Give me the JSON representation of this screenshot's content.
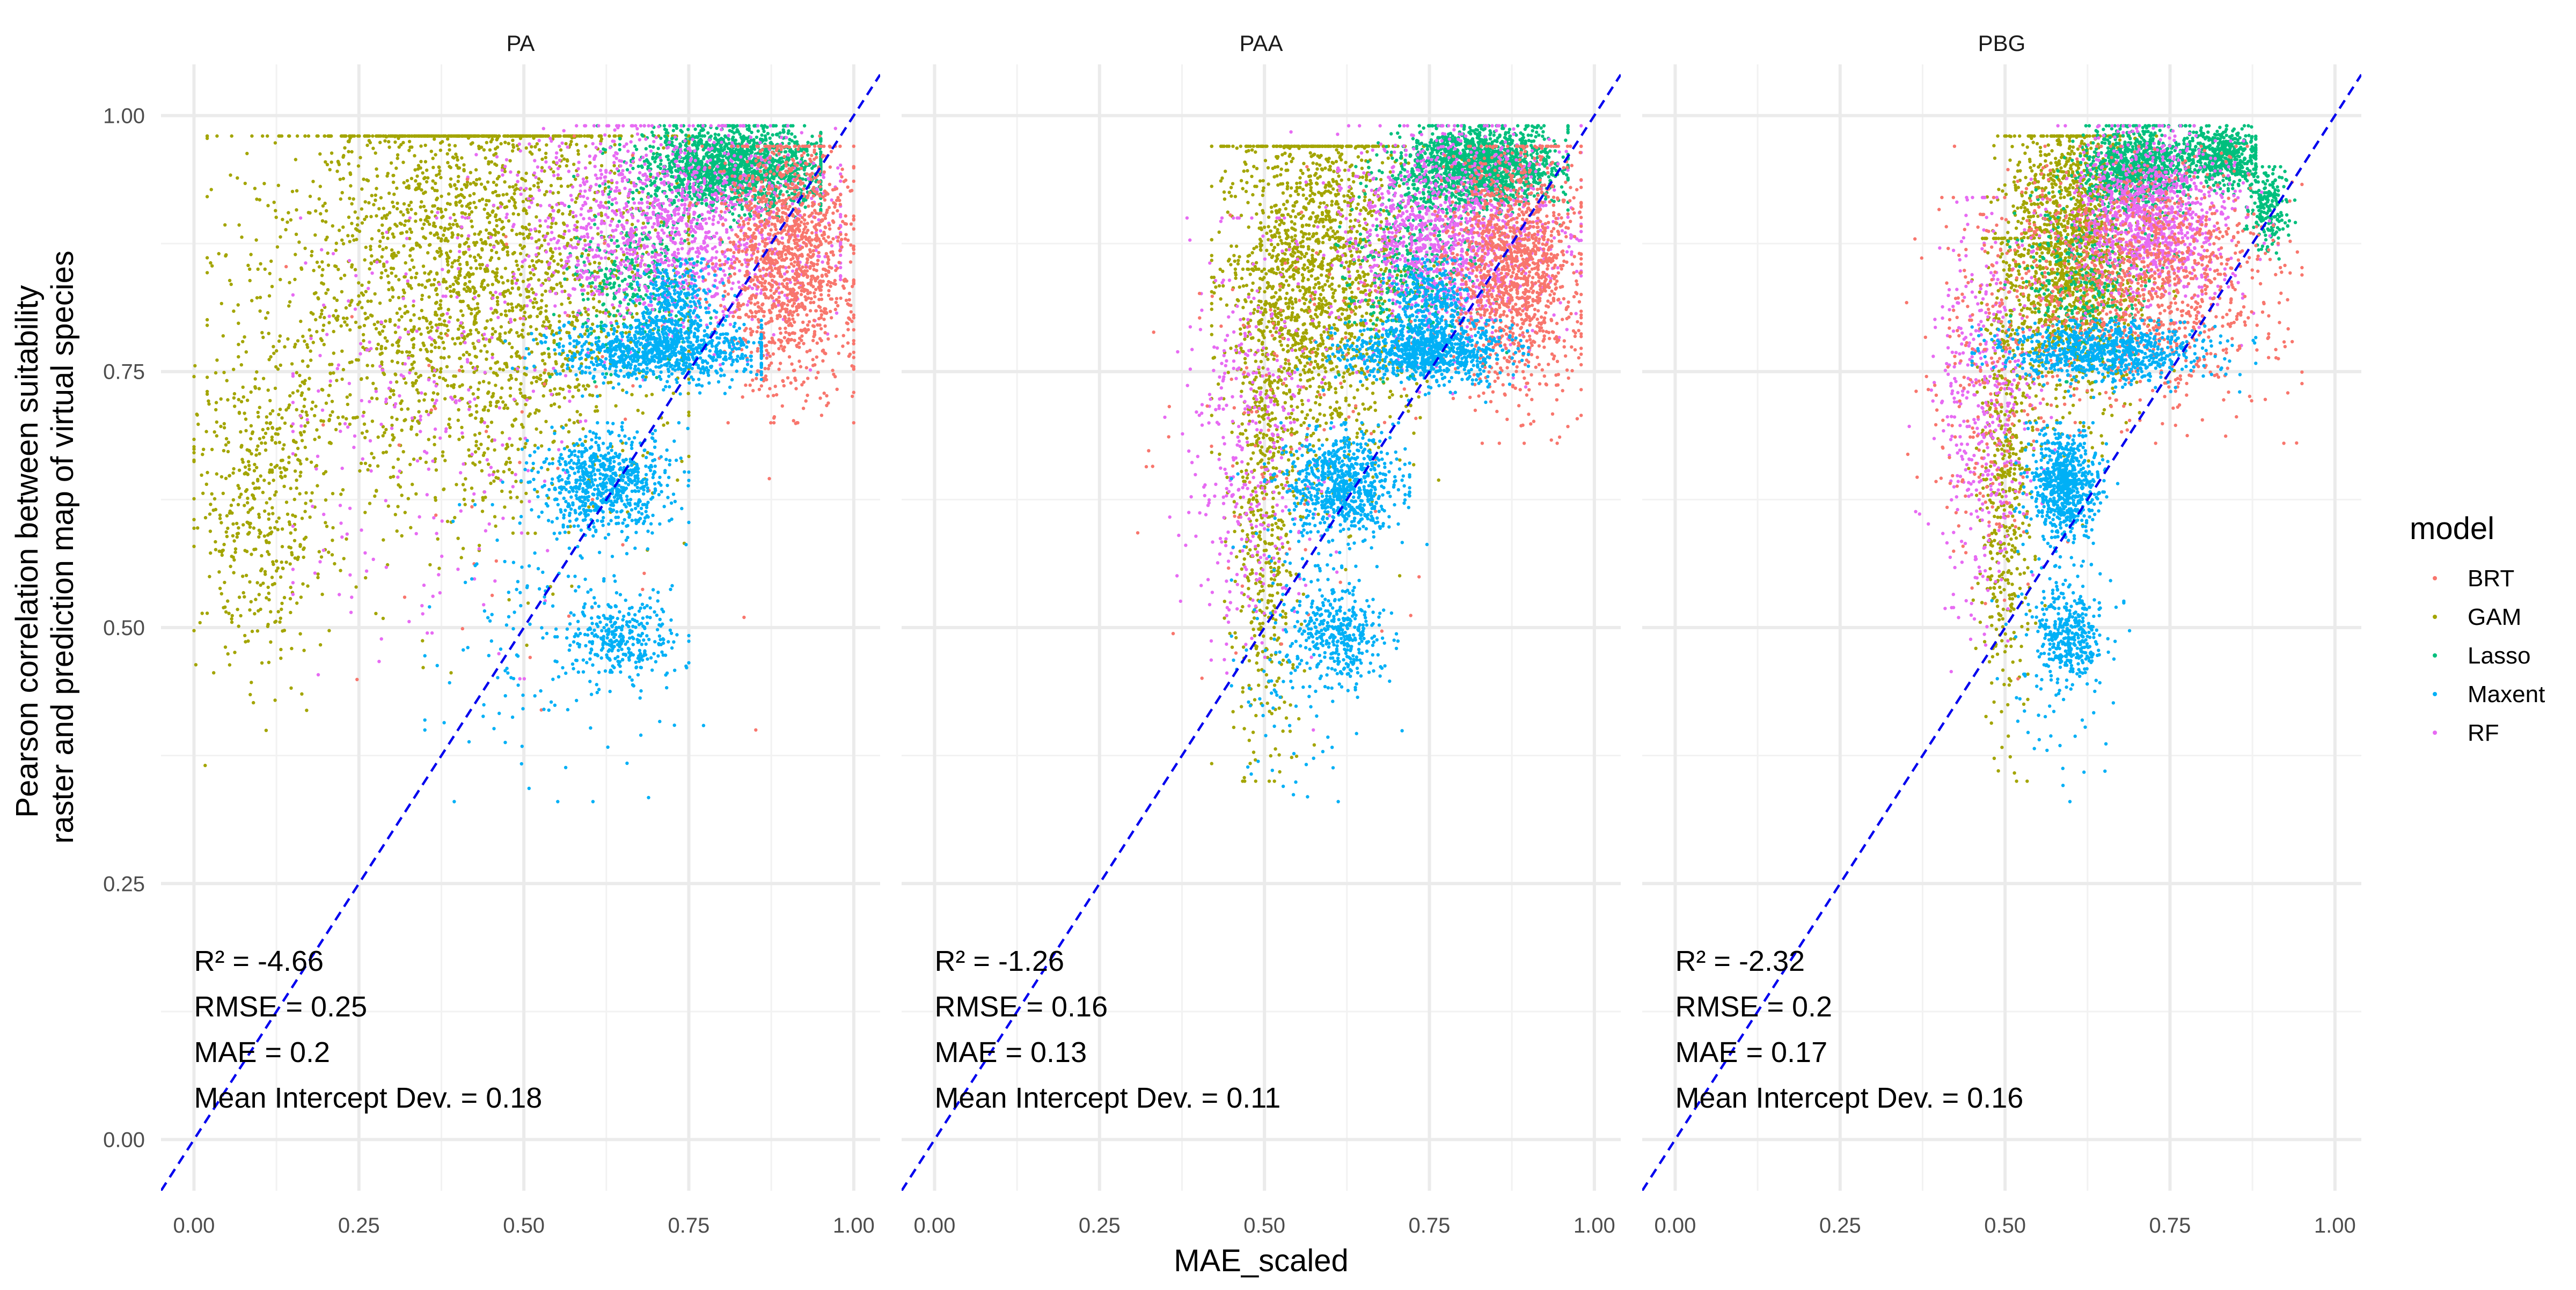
{
  "chart_data": {
    "type": "scatter",
    "xlabel": "MAE_scaled",
    "ylabel_lines": [
      "Pearson correlation between suitability",
      "raster and prediction map of virtual species"
    ],
    "xlim": [
      -0.05,
      1.04
    ],
    "ylim": [
      -0.05,
      1.05
    ],
    "x_ticks": [
      "0.00",
      "0.25",
      "0.50",
      "0.75",
      "1.00"
    ],
    "y_ticks": [
      "0.00",
      "0.25",
      "0.50",
      "0.75",
      "1.00"
    ],
    "grid": true,
    "reference_line": {
      "style": "dashed",
      "color": "#0000EE",
      "slope": 1,
      "intercept": 0
    },
    "legend": {
      "title": "model",
      "placement": "right",
      "entries": [
        {
          "name": "BRT",
          "color": "#F8766D"
        },
        {
          "name": "GAM",
          "color": "#A3A500"
        },
        {
          "name": "Lasso",
          "color": "#00BF7D"
        },
        {
          "name": "Maxent",
          "color": "#00B0F6"
        },
        {
          "name": "RF",
          "color": "#E76BF3"
        }
      ]
    },
    "panels": [
      {
        "title": "PA",
        "stats": [
          "R² = -4.66",
          "RMSE = 0.25",
          "MAE = 0.2",
          "Mean Intercept Dev. = 0.18"
        ],
        "clusters": [
          {
            "series": "GAM",
            "n": 2600,
            "cx": 0.42,
            "cy": 0.85,
            "sx": 0.15,
            "sy": 0.12,
            "xmin": 0.02,
            "xmax": 0.75,
            "ymin": 0.35,
            "ymax": 0.98
          },
          {
            "series": "GAM",
            "n": 500,
            "cx": 0.1,
            "cy": 0.63,
            "sx": 0.05,
            "sy": 0.09,
            "xmin": 0.0,
            "xmax": 0.3,
            "ymin": 0.35,
            "ymax": 0.85
          },
          {
            "series": "Lasso",
            "n": 1600,
            "cx": 0.82,
            "cy": 0.95,
            "sx": 0.07,
            "sy": 0.02,
            "xmin": 0.6,
            "xmax": 0.95,
            "ymin": 0.88,
            "ymax": 0.99
          },
          {
            "series": "Lasso",
            "n": 350,
            "cx": 0.67,
            "cy": 0.84,
            "sx": 0.05,
            "sy": 0.04,
            "xmin": 0.52,
            "xmax": 0.9,
            "ymin": 0.74,
            "ymax": 0.96
          },
          {
            "series": "RF",
            "n": 1400,
            "cx": 0.72,
            "cy": 0.89,
            "sx": 0.12,
            "sy": 0.05,
            "xmin": 0.35,
            "xmax": 0.98,
            "ymin": 0.65,
            "ymax": 0.99
          },
          {
            "series": "RF",
            "n": 250,
            "cx": 0.35,
            "cy": 0.7,
            "sx": 0.12,
            "sy": 0.1,
            "xmin": 0.15,
            "xmax": 0.6,
            "ymin": 0.45,
            "ymax": 0.9
          },
          {
            "series": "BRT",
            "n": 1300,
            "cx": 0.9,
            "cy": 0.86,
            "sx": 0.05,
            "sy": 0.06,
            "xmin": 0.7,
            "xmax": 1.0,
            "ymin": 0.7,
            "ymax": 0.97
          },
          {
            "series": "BRT",
            "n": 60,
            "cx": 0.5,
            "cy": 0.7,
            "sx": 0.2,
            "sy": 0.15,
            "xmin": 0.1,
            "xmax": 1.0,
            "ymin": 0.4,
            "ymax": 0.98
          },
          {
            "series": "Maxent",
            "n": 900,
            "cx": 0.7,
            "cy": 0.77,
            "sx": 0.08,
            "sy": 0.015,
            "xmin": 0.45,
            "xmax": 0.86,
            "ymin": 0.72,
            "ymax": 0.8
          },
          {
            "series": "Maxent",
            "n": 250,
            "cx": 0.73,
            "cy": 0.82,
            "sx": 0.03,
            "sy": 0.02,
            "xmin": 0.65,
            "xmax": 0.82,
            "ymin": 0.78,
            "ymax": 0.86
          },
          {
            "series": "Maxent",
            "n": 700,
            "cx": 0.62,
            "cy": 0.64,
            "sx": 0.05,
            "sy": 0.025,
            "xmin": 0.45,
            "xmax": 0.75,
            "ymin": 0.55,
            "ymax": 0.7
          },
          {
            "series": "Maxent",
            "n": 300,
            "cx": 0.65,
            "cy": 0.49,
            "sx": 0.04,
            "sy": 0.02,
            "xmin": 0.55,
            "xmax": 0.75,
            "ymin": 0.43,
            "ymax": 0.55
          },
          {
            "series": "Maxent",
            "n": 150,
            "cx": 0.55,
            "cy": 0.48,
            "sx": 0.1,
            "sy": 0.07,
            "xmin": 0.35,
            "xmax": 0.8,
            "ymin": 0.33,
            "ymax": 0.62
          }
        ]
      },
      {
        "title": "PAA",
        "stats": [
          "R² = -1.26",
          "RMSE = 0.16",
          "MAE = 0.13",
          "Mean Intercept Dev. = 0.11"
        ],
        "clusters": [
          {
            "series": "GAM",
            "n": 1700,
            "cx": 0.58,
            "cy": 0.84,
            "sx": 0.07,
            "sy": 0.09,
            "xmin": 0.42,
            "xmax": 0.85,
            "ymin": 0.55,
            "ymax": 0.97
          },
          {
            "series": "GAM",
            "n": 500,
            "cx": 0.5,
            "cy": 0.62,
            "sx": 0.025,
            "sy": 0.12,
            "xmin": 0.42,
            "xmax": 0.6,
            "ymin": 0.35,
            "ymax": 0.85
          },
          {
            "series": "Lasso",
            "n": 1600,
            "cx": 0.82,
            "cy": 0.95,
            "sx": 0.06,
            "sy": 0.02,
            "xmin": 0.6,
            "xmax": 0.96,
            "ymin": 0.88,
            "ymax": 0.99
          },
          {
            "series": "Lasso",
            "n": 350,
            "cx": 0.72,
            "cy": 0.85,
            "sx": 0.05,
            "sy": 0.04,
            "xmin": 0.55,
            "xmax": 0.92,
            "ymin": 0.74,
            "ymax": 0.96
          },
          {
            "series": "RF",
            "n": 1300,
            "cx": 0.78,
            "cy": 0.88,
            "sx": 0.08,
            "sy": 0.05,
            "xmin": 0.5,
            "xmax": 0.98,
            "ymin": 0.7,
            "ymax": 0.99
          },
          {
            "series": "RF",
            "n": 400,
            "cx": 0.48,
            "cy": 0.68,
            "sx": 0.05,
            "sy": 0.1,
            "xmin": 0.3,
            "xmax": 0.62,
            "ymin": 0.4,
            "ymax": 0.9
          },
          {
            "series": "BRT",
            "n": 1300,
            "cx": 0.88,
            "cy": 0.85,
            "sx": 0.05,
            "sy": 0.06,
            "xmin": 0.7,
            "xmax": 0.98,
            "ymin": 0.68,
            "ymax": 0.97
          },
          {
            "series": "BRT",
            "n": 120,
            "cx": 0.55,
            "cy": 0.72,
            "sx": 0.1,
            "sy": 0.12,
            "xmin": 0.3,
            "xmax": 0.8,
            "ymin": 0.4,
            "ymax": 0.95
          },
          {
            "series": "Maxent",
            "n": 900,
            "cx": 0.75,
            "cy": 0.77,
            "sx": 0.06,
            "sy": 0.015,
            "xmin": 0.55,
            "xmax": 0.9,
            "ymin": 0.72,
            "ymax": 0.8
          },
          {
            "series": "Maxent",
            "n": 250,
            "cx": 0.75,
            "cy": 0.82,
            "sx": 0.03,
            "sy": 0.02,
            "xmin": 0.68,
            "xmax": 0.85,
            "ymin": 0.78,
            "ymax": 0.86
          },
          {
            "series": "Maxent",
            "n": 700,
            "cx": 0.62,
            "cy": 0.64,
            "sx": 0.04,
            "sy": 0.025,
            "xmin": 0.5,
            "xmax": 0.72,
            "ymin": 0.55,
            "ymax": 0.7
          },
          {
            "series": "Maxent",
            "n": 300,
            "cx": 0.62,
            "cy": 0.49,
            "sx": 0.03,
            "sy": 0.02,
            "xmin": 0.55,
            "xmax": 0.7,
            "ymin": 0.43,
            "ymax": 0.55
          },
          {
            "series": "Maxent",
            "n": 200,
            "cx": 0.57,
            "cy": 0.5,
            "sx": 0.06,
            "sy": 0.08,
            "xmin": 0.45,
            "xmax": 0.75,
            "ymin": 0.33,
            "ymax": 0.65
          }
        ]
      },
      {
        "title": "PBG",
        "stats": [
          "R² = -2.32",
          "RMSE = 0.2",
          "MAE = 0.17",
          "Mean Intercept Dev. = 0.16"
        ],
        "clusters": [
          {
            "series": "GAM",
            "n": 1600,
            "cx": 0.6,
            "cy": 0.87,
            "sx": 0.05,
            "sy": 0.07,
            "xmin": 0.45,
            "xmax": 0.78,
            "ymin": 0.6,
            "ymax": 0.98
          },
          {
            "series": "GAM",
            "n": 500,
            "cx": 0.5,
            "cy": 0.65,
            "sx": 0.02,
            "sy": 0.12,
            "xmin": 0.44,
            "xmax": 0.58,
            "ymin": 0.35,
            "ymax": 0.88
          },
          {
            "series": "Lasso",
            "n": 900,
            "cx": 0.7,
            "cy": 0.95,
            "sx": 0.04,
            "sy": 0.02,
            "xmin": 0.55,
            "xmax": 0.78,
            "ymin": 0.86,
            "ymax": 0.99
          },
          {
            "series": "Lasso",
            "n": 500,
            "cx": 0.83,
            "cy": 0.96,
            "sx": 0.03,
            "sy": 0.015,
            "xmin": 0.75,
            "xmax": 0.88,
            "ymin": 0.92,
            "ymax": 0.99
          },
          {
            "series": "Lasso",
            "n": 200,
            "cx": 0.9,
            "cy": 0.91,
            "sx": 0.015,
            "sy": 0.02,
            "xmin": 0.86,
            "xmax": 0.94,
            "ymin": 0.86,
            "ymax": 0.95
          },
          {
            "series": "Lasso",
            "n": 300,
            "cx": 0.62,
            "cy": 0.84,
            "sx": 0.05,
            "sy": 0.04,
            "xmin": 0.5,
            "xmax": 0.8,
            "ymin": 0.74,
            "ymax": 0.95
          },
          {
            "series": "RF",
            "n": 1100,
            "cx": 0.72,
            "cy": 0.9,
            "sx": 0.06,
            "sy": 0.04,
            "xmin": 0.5,
            "xmax": 0.92,
            "ymin": 0.75,
            "ymax": 0.99
          },
          {
            "series": "RF",
            "n": 450,
            "cx": 0.47,
            "cy": 0.72,
            "sx": 0.04,
            "sy": 0.1,
            "xmin": 0.35,
            "xmax": 0.6,
            "ymin": 0.42,
            "ymax": 0.92
          },
          {
            "series": "BRT",
            "n": 1100,
            "cx": 0.72,
            "cy": 0.84,
            "sx": 0.1,
            "sy": 0.06,
            "xmin": 0.4,
            "xmax": 0.95,
            "ymin": 0.68,
            "ymax": 0.97
          },
          {
            "series": "BRT",
            "n": 250,
            "cx": 0.48,
            "cy": 0.75,
            "sx": 0.05,
            "sy": 0.1,
            "xmin": 0.35,
            "xmax": 0.6,
            "ymin": 0.45,
            "ymax": 0.92
          },
          {
            "series": "Maxent",
            "n": 800,
            "cx": 0.65,
            "cy": 0.77,
            "sx": 0.08,
            "sy": 0.015,
            "xmin": 0.45,
            "xmax": 0.88,
            "ymin": 0.72,
            "ymax": 0.8
          },
          {
            "series": "Maxent",
            "n": 700,
            "cx": 0.59,
            "cy": 0.64,
            "sx": 0.025,
            "sy": 0.025,
            "xmin": 0.5,
            "xmax": 0.68,
            "ymin": 0.55,
            "ymax": 0.7
          },
          {
            "series": "Maxent",
            "n": 300,
            "cx": 0.6,
            "cy": 0.49,
            "sx": 0.025,
            "sy": 0.02,
            "xmin": 0.53,
            "xmax": 0.68,
            "ymin": 0.43,
            "ymax": 0.55
          },
          {
            "series": "Maxent",
            "n": 150,
            "cx": 0.58,
            "cy": 0.5,
            "sx": 0.04,
            "sy": 0.08,
            "xmin": 0.48,
            "xmax": 0.7,
            "ymin": 0.33,
            "ymax": 0.65
          }
        ]
      }
    ]
  }
}
